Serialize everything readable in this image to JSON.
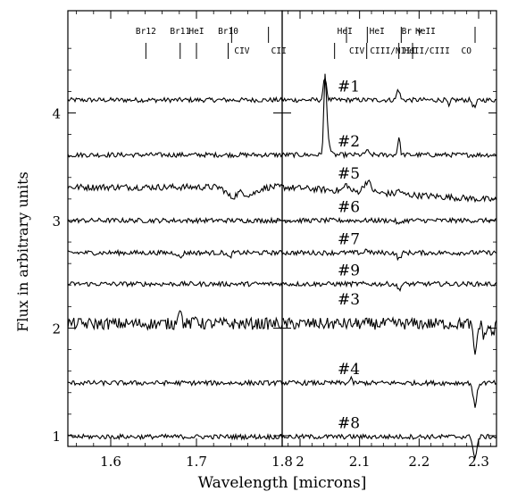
{
  "chart_data": {
    "type": "line",
    "xlabel": "Wavelength [microns]",
    "ylabel": "Flux in arbitrary units",
    "ylim": [
      0.9,
      4.95
    ],
    "yticks": [
      1,
      2,
      3,
      4
    ],
    "grid": false,
    "panels": [
      {
        "name": "left",
        "xlim": [
          1.55,
          1.8
        ],
        "xticks": [
          1.6,
          1.7,
          1.8
        ],
        "xtick_labels": [
          "1.6",
          "1.7",
          "1.8"
        ]
      },
      {
        "name": "right",
        "xlim": [
          1.97,
          2.33
        ],
        "xticks": [
          2.0,
          2.1,
          2.2,
          2.3
        ],
        "xtick_labels": [
          "2",
          "2.1",
          "2.2",
          "2.3"
        ]
      }
    ],
    "line_markers": [
      {
        "panel": "left",
        "row": "top",
        "label": "Br12",
        "x": 1.641
      },
      {
        "panel": "left",
        "row": "top",
        "label": "Br11",
        "x": 1.681
      },
      {
        "panel": "left",
        "row": "top",
        "label": "HeI",
        "x": 1.7
      },
      {
        "panel": "left",
        "row": "top",
        "label": "Br10",
        "x": 1.737
      },
      {
        "panel": "left",
        "row": "bottom",
        "label": "CIV",
        "x": 1.741
      },
      {
        "panel": "left",
        "row": "bottom",
        "label": "CII",
        "x": 1.784
      },
      {
        "panel": "right",
        "row": "top",
        "label": "HeI",
        "x": 2.058
      },
      {
        "panel": "right",
        "row": "bottom",
        "label": "CIV",
        "x": 2.078
      },
      {
        "panel": "right",
        "row": "top",
        "label": "HeI",
        "x": 2.112
      },
      {
        "panel": "right",
        "row": "bottom",
        "label": "CIII/NIII",
        "x": 2.113
      },
      {
        "panel": "right",
        "row": "top",
        "label": "Br γ",
        "x": 2.166
      },
      {
        "panel": "right",
        "row": "bottom",
        "label": "HeII/CIII",
        "x": 2.17
      },
      {
        "panel": "right",
        "row": "top",
        "label": "HeII",
        "x": 2.189
      },
      {
        "panel": "right",
        "row": "bottom",
        "label": "CO",
        "x": 2.294
      }
    ],
    "series": [
      {
        "name": "#1",
        "baseline": 4.12,
        "label_y": 4.25,
        "lines": [
          {
            "panel": "right",
            "x": 2.042,
            "amp": 0.22,
            "w": 0.0025
          },
          {
            "panel": "right",
            "x": 2.165,
            "amp": 0.1,
            "w": 0.0025
          },
          {
            "panel": "right",
            "x": 2.25,
            "amp": -0.07,
            "w": 0.0018
          },
          {
            "panel": "right",
            "x": 2.293,
            "amp": -0.07,
            "w": 0.003
          }
        ]
      },
      {
        "name": "#2",
        "baseline": 3.61,
        "label_y": 3.74,
        "lines": [
          {
            "panel": "right",
            "x": 2.042,
            "amp": 0.68,
            "w": 0.0022
          },
          {
            "panel": "right",
            "x": 2.0465,
            "amp": 0.18,
            "w": 0.003
          },
          {
            "panel": "right",
            "x": 2.112,
            "amp": 0.05,
            "w": 0.002
          },
          {
            "panel": "right",
            "x": 2.166,
            "amp": 0.16,
            "w": 0.002
          }
        ]
      },
      {
        "name": "#5",
        "baseline": 3.31,
        "label_y": 3.44,
        "slope_right": -0.12,
        "lines": [
          {
            "panel": "left",
            "x": 1.741,
            "amp": -0.09,
            "w": 0.006
          },
          {
            "panel": "left",
            "x": 1.762,
            "amp": -0.07,
            "w": 0.008
          },
          {
            "panel": "right",
            "x": 2.078,
            "amp": 0.06,
            "w": 0.004
          },
          {
            "panel": "right",
            "x": 2.113,
            "amp": 0.1,
            "w": 0.006
          },
          {
            "panel": "right",
            "x": 2.166,
            "amp": 0.04,
            "w": 0.003
          }
        ]
      },
      {
        "name": "#6",
        "baseline": 3.0,
        "label_y": 3.13,
        "lines": [
          {
            "panel": "right",
            "x": 2.166,
            "amp": -0.04,
            "w": 0.003
          }
        ]
      },
      {
        "name": "#7",
        "baseline": 2.7,
        "label_y": 2.83,
        "lines": [
          {
            "panel": "left",
            "x": 1.681,
            "amp": -0.05,
            "w": 0.002
          },
          {
            "panel": "left",
            "x": 1.738,
            "amp": -0.05,
            "w": 0.002
          },
          {
            "panel": "right",
            "x": 2.112,
            "amp": 0.04,
            "w": 0.002
          },
          {
            "panel": "right",
            "x": 2.166,
            "amp": -0.06,
            "w": 0.003
          }
        ]
      },
      {
        "name": "#9",
        "baseline": 2.41,
        "label_y": 2.54,
        "lines": [
          {
            "panel": "right",
            "x": 2.166,
            "amp": -0.05,
            "w": 0.003
          }
        ]
      },
      {
        "name": "#3",
        "baseline": 2.04,
        "label_y": 2.27,
        "lines": [
          {
            "panel": "left",
            "x": 1.68,
            "amp": 0.15,
            "w": 0.002
          },
          {
            "panel": "left",
            "x": 1.7,
            "amp": 0.06,
            "w": 0.002
          },
          {
            "panel": "right",
            "x": 2.294,
            "amp": -0.28,
            "w": 0.003
          },
          {
            "panel": "right",
            "x": 2.31,
            "amp": -0.12,
            "w": 0.003
          },
          {
            "panel": "right",
            "x": 2.323,
            "amp": -0.1,
            "w": 0.003
          }
        ]
      },
      {
        "name": "#4",
        "baseline": 1.49,
        "label_y": 1.62,
        "lines": [
          {
            "panel": "right",
            "x": 2.085,
            "amp": 0.05,
            "w": 0.0015
          },
          {
            "panel": "right",
            "x": 2.294,
            "amp": -0.22,
            "w": 0.003
          }
        ]
      },
      {
        "name": "#8",
        "baseline": 0.99,
        "label_y": 1.12,
        "lines": [
          {
            "panel": "right",
            "x": 2.294,
            "amp": -0.2,
            "w": 0.003
          }
        ]
      }
    ]
  }
}
